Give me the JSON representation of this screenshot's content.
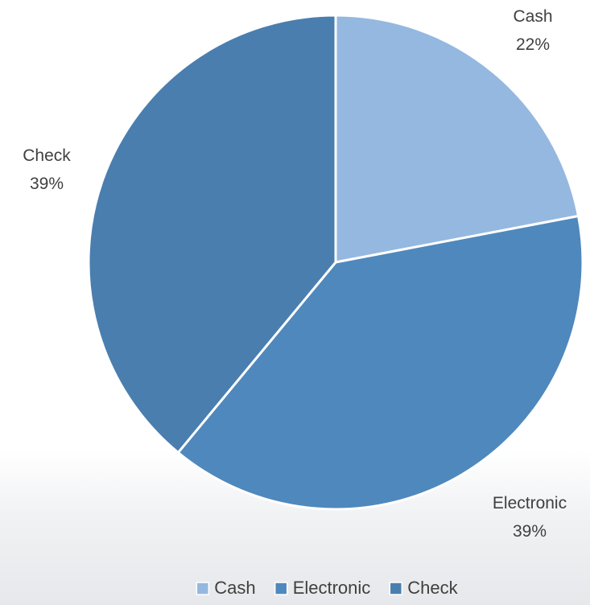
{
  "chart_data": {
    "type": "pie",
    "title": "",
    "categories": [
      "Cash",
      "Electronic",
      "Check"
    ],
    "values": [
      22,
      39,
      39
    ],
    "unit": "%",
    "data_labels": [
      {
        "category": "Cash",
        "value_text": "22%"
      },
      {
        "category": "Electronic",
        "value_text": "39%"
      },
      {
        "category": "Check",
        "value_text": "39%"
      }
    ],
    "colors": [
      "#95b8e0",
      "#4f88bc",
      "#4a7eaf"
    ],
    "legend": {
      "position": "bottom",
      "entries": [
        "Cash",
        "Electronic",
        "Check"
      ]
    },
    "start_angle": "12 o'clock",
    "direction": "clockwise"
  }
}
